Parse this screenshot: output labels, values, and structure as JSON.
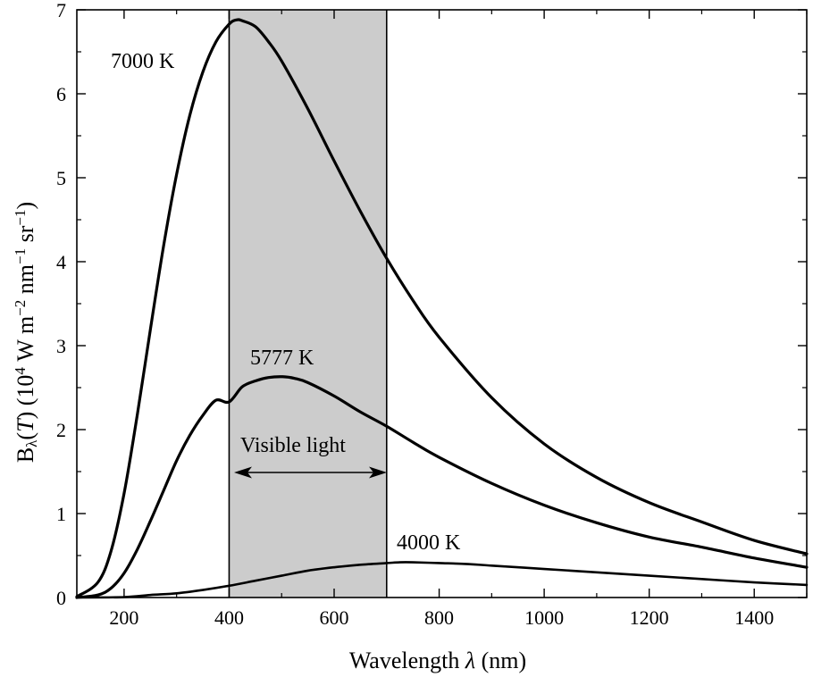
{
  "chart_data": {
    "type": "line",
    "xlabel_main": "Wavelength ",
    "xlabel_sym": "λ",
    "xlabel_unit": " (nm)",
    "ylabel_parts": {
      "b": "B",
      "lambda_sub": "λ",
      "open": "(",
      "t": "T",
      "close": ") (10",
      "exp4": "4",
      "w_m": " W m",
      "exp_m2": "−2",
      "nm": " nm",
      "exp_m1a": "−1",
      "sr": " sr",
      "exp_m1b": "−1",
      "end": ")"
    },
    "xlim": [
      110,
      1500
    ],
    "ylim": [
      0,
      7
    ],
    "x_ticks": [
      200,
      400,
      600,
      800,
      1000,
      1200,
      1400
    ],
    "x_tick_labels": [
      "200",
      "400",
      "600",
      "800",
      "1000",
      "1200",
      "1400"
    ],
    "y_ticks": [
      0,
      1,
      2,
      3,
      4,
      5,
      6,
      7
    ],
    "y_tick_labels": [
      "0",
      "1",
      "2",
      "3",
      "4",
      "5",
      "6",
      "7"
    ],
    "shaded_band": {
      "x_start": 400,
      "x_end": 700,
      "color": "#cccccc",
      "label": "Visible light"
    },
    "series": [
      {
        "name": "7000 K",
        "stroke_width": 3.2,
        "x": [
          110,
          150,
          175,
          200,
          225,
          250,
          275,
          300,
          325,
          350,
          375,
          400,
          414,
          425,
          450,
          475,
          500,
          550,
          600,
          650,
          700,
          750,
          800,
          900,
          1000,
          1100,
          1200,
          1300,
          1400,
          1500
        ],
        "y": [
          0.01,
          0.18,
          0.55,
          1.24,
          2.17,
          3.19,
          4.18,
          5.04,
          5.74,
          6.26,
          6.62,
          6.83,
          6.88,
          6.87,
          6.8,
          6.62,
          6.39,
          5.82,
          5.2,
          4.6,
          4.04,
          3.54,
          3.1,
          2.38,
          1.83,
          1.43,
          1.13,
          0.9,
          0.68,
          0.52
        ]
      },
      {
        "name": "5777 K",
        "stroke_width": 3.2,
        "x": [
          110,
          150,
          175,
          200,
          225,
          250,
          275,
          300,
          325,
          350,
          375,
          400,
          425,
          450,
          475,
          502,
          525,
          550,
          600,
          650,
          700,
          750,
          800,
          900,
          1000,
          1100,
          1200,
          1300,
          1400,
          1500
        ],
        "y": [
          0.0,
          0.03,
          0.11,
          0.29,
          0.57,
          0.91,
          1.27,
          1.63,
          1.93,
          2.17,
          2.35,
          2.33,
          2.51,
          2.58,
          2.62,
          2.63,
          2.61,
          2.56,
          2.4,
          2.21,
          2.04,
          1.85,
          1.67,
          1.36,
          1.1,
          0.89,
          0.72,
          0.6,
          0.47,
          0.36
        ]
      },
      {
        "name": "4000 K",
        "stroke_width": 2.6,
        "x": [
          110,
          200,
          250,
          300,
          350,
          400,
          450,
          500,
          550,
          600,
          650,
          700,
          725,
          750,
          800,
          850,
          900,
          1000,
          1100,
          1200,
          1300,
          1400,
          1500
        ],
        "y": [
          0.0,
          0.005,
          0.03,
          0.05,
          0.09,
          0.14,
          0.2,
          0.26,
          0.32,
          0.36,
          0.39,
          0.41,
          0.42,
          0.42,
          0.41,
          0.4,
          0.38,
          0.34,
          0.3,
          0.26,
          0.22,
          0.18,
          0.15
        ]
      }
    ],
    "grid": false,
    "legend": "none"
  }
}
